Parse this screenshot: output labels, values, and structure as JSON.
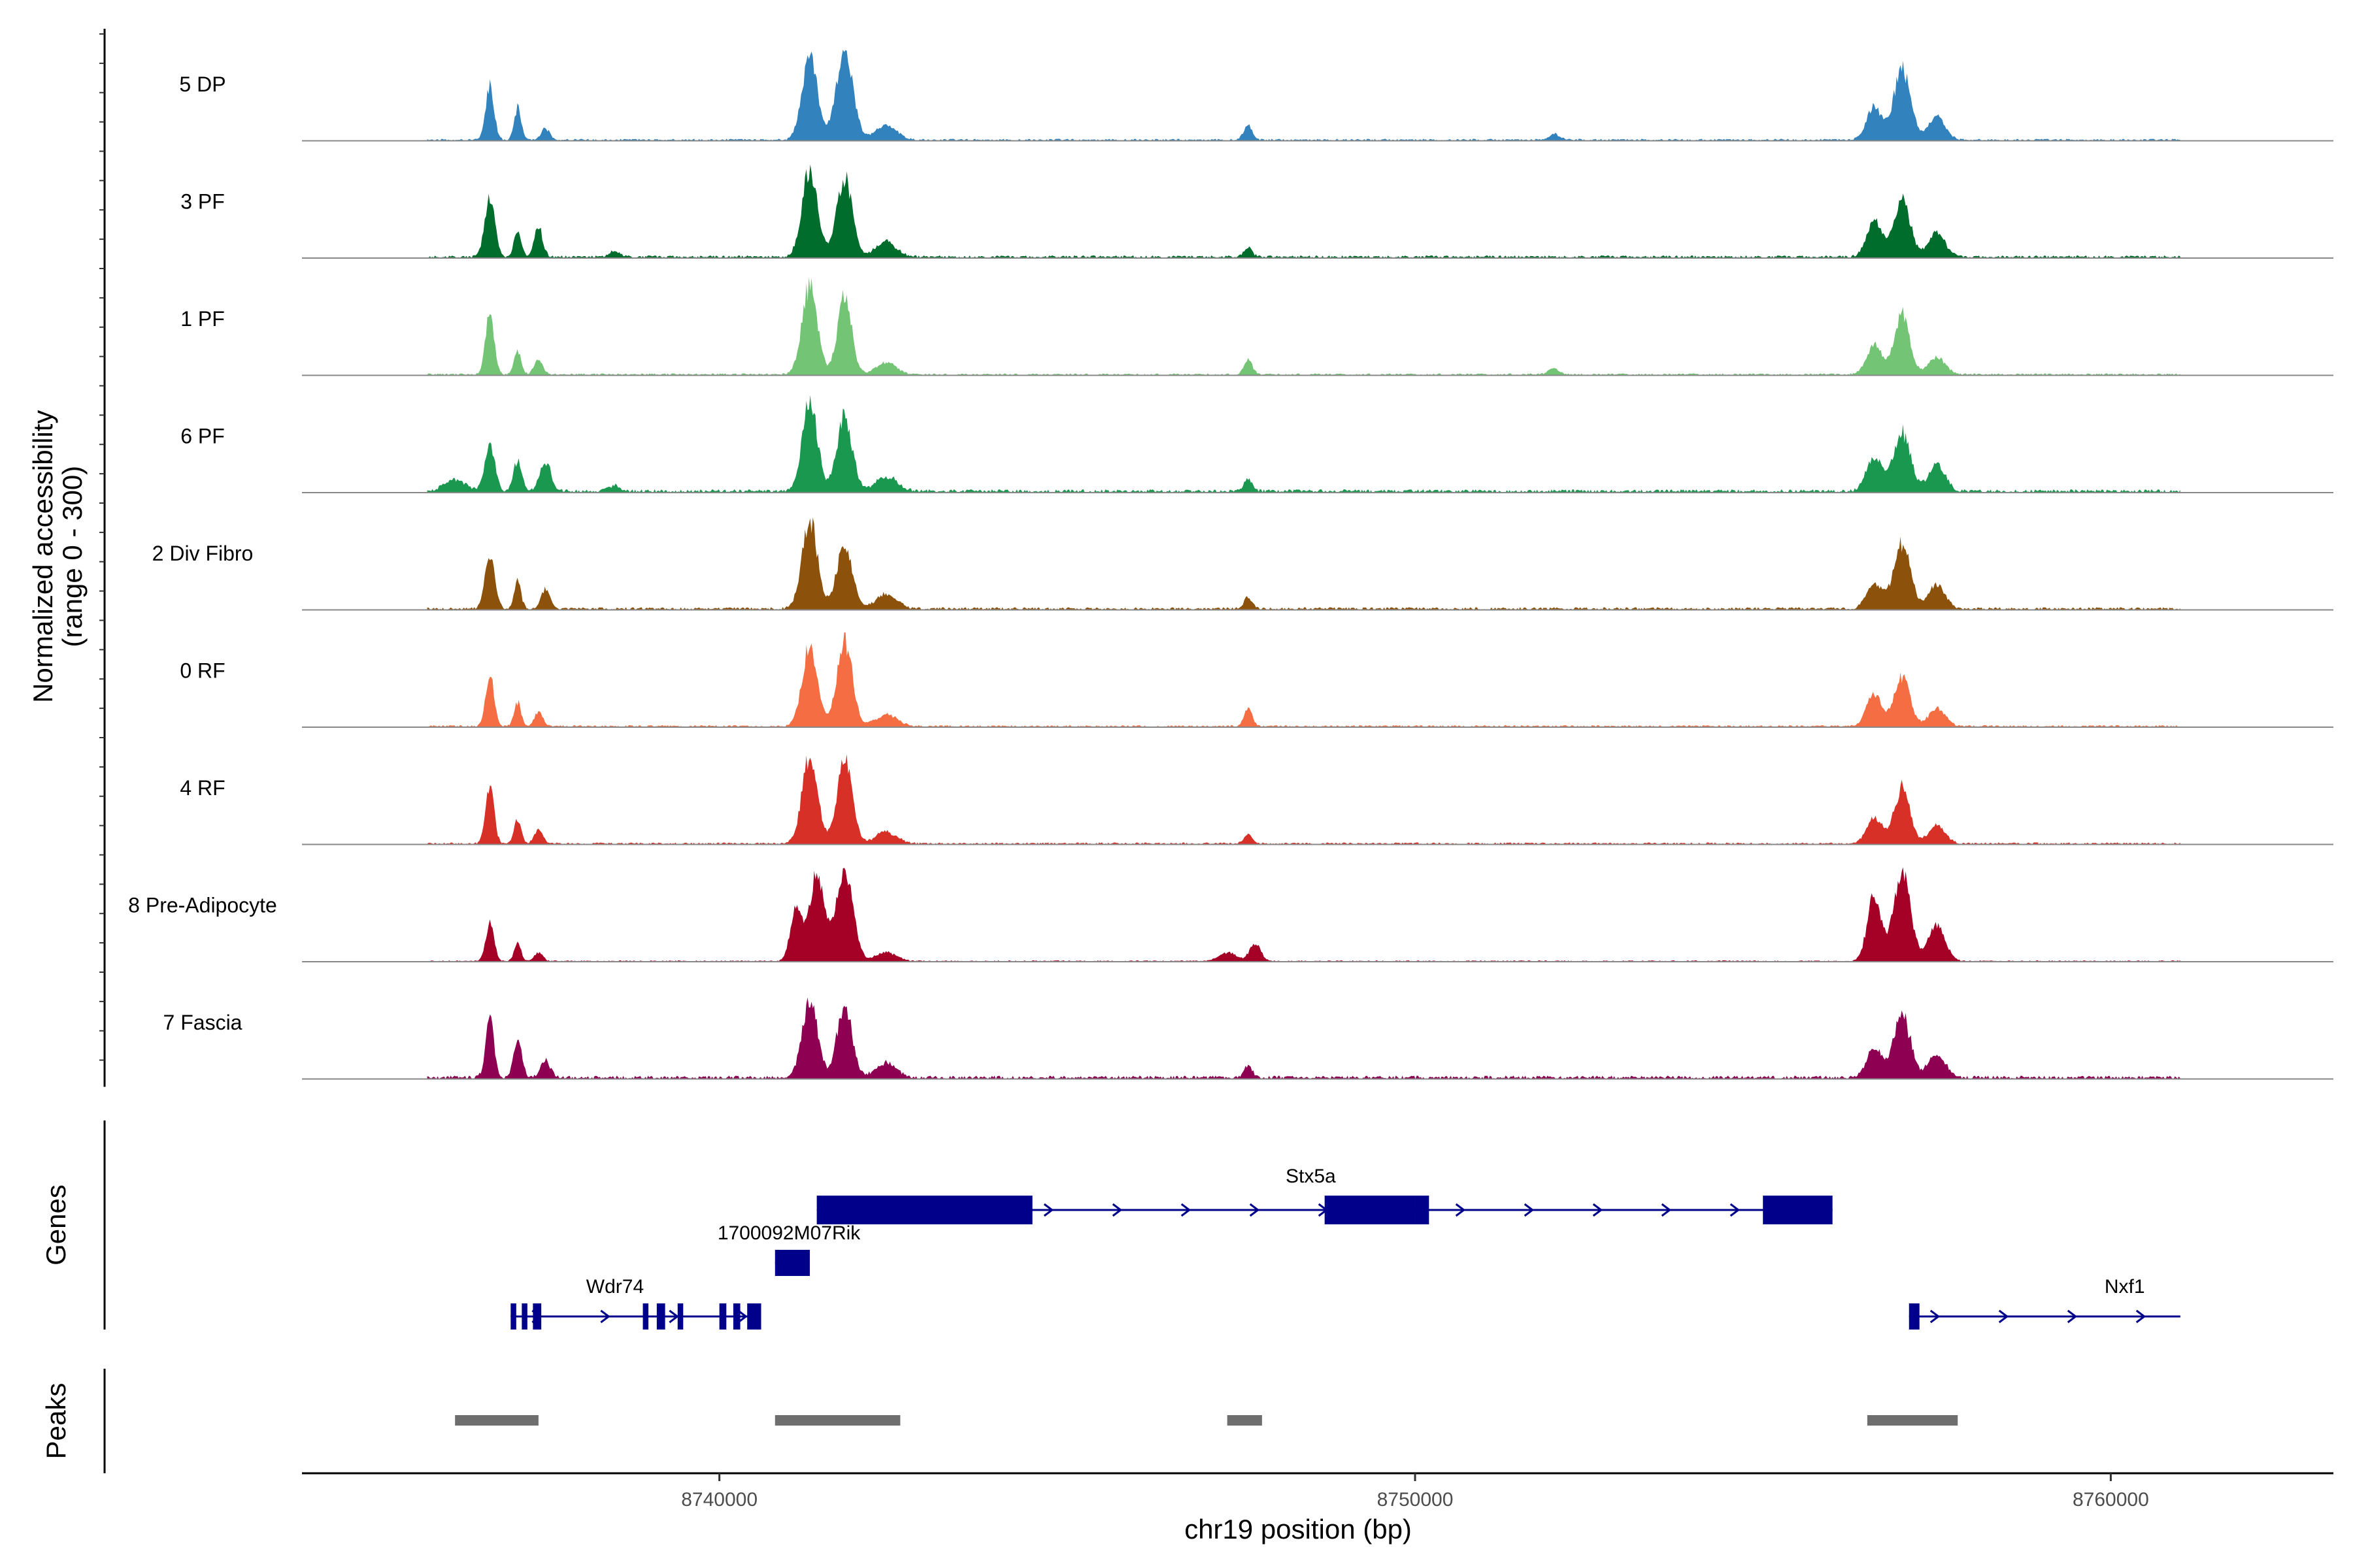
{
  "chart_data": {
    "type": "area",
    "title": "",
    "chromosome": "chr19",
    "xlabel": "chr19 position (bp)",
    "ylabel": "Normalized accessibility",
    "ylabel_range": "(range 0 - 300)",
    "xlim": [
      8734000,
      8763200
    ],
    "ylim": [
      0,
      300
    ],
    "x_ticks": [
      8740000,
      8750000,
      8760000
    ],
    "x_tick_labels": [
      "8740000",
      "8750000",
      "8760000"
    ],
    "coverage_range": [
      8735800,
      8761000
    ],
    "tracks": [
      {
        "name": "5 DP",
        "color": "#3182BD",
        "peaks": [
          [
            8736700,
            190,
            60
          ],
          [
            8737100,
            110,
            50
          ],
          [
            8737500,
            40,
            60
          ],
          [
            8741300,
            280,
            110
          ],
          [
            8741800,
            300,
            120
          ],
          [
            8742400,
            50,
            150
          ],
          [
            8747600,
            50,
            60
          ],
          [
            8752000,
            20,
            80
          ],
          [
            8756600,
            110,
            110
          ],
          [
            8757000,
            240,
            120
          ],
          [
            8757500,
            80,
            120
          ]
        ],
        "base": 6
      },
      {
        "name": "3 PF",
        "color": "#006D2C",
        "peaks": [
          [
            8736700,
            210,
            70
          ],
          [
            8737100,
            90,
            50
          ],
          [
            8737400,
            100,
            60
          ],
          [
            8738500,
            20,
            80
          ],
          [
            8741300,
            300,
            110
          ],
          [
            8741800,
            270,
            110
          ],
          [
            8742400,
            50,
            150
          ],
          [
            8747600,
            30,
            60
          ],
          [
            8756600,
            120,
            110
          ],
          [
            8757000,
            190,
            120
          ],
          [
            8757500,
            80,
            120
          ]
        ],
        "base": 8
      },
      {
        "name": "1 PF",
        "color": "#74C476",
        "peaks": [
          [
            8736700,
            210,
            60
          ],
          [
            8737100,
            80,
            50
          ],
          [
            8737400,
            50,
            60
          ],
          [
            8741300,
            300,
            110
          ],
          [
            8741800,
            270,
            100
          ],
          [
            8742400,
            40,
            150
          ],
          [
            8747600,
            50,
            60
          ],
          [
            8752000,
            20,
            80
          ],
          [
            8756600,
            100,
            110
          ],
          [
            8757000,
            200,
            110
          ],
          [
            8757500,
            60,
            120
          ]
        ],
        "base": 6
      },
      {
        "name": "6 PF",
        "color": "#1A9850",
        "peaks": [
          [
            8736200,
            40,
            150
          ],
          [
            8736700,
            160,
            70
          ],
          [
            8737100,
            100,
            60
          ],
          [
            8737500,
            100,
            80
          ],
          [
            8738500,
            20,
            80
          ],
          [
            8741300,
            300,
            110
          ],
          [
            8741800,
            250,
            110
          ],
          [
            8742400,
            50,
            150
          ],
          [
            8747600,
            40,
            60
          ],
          [
            8756600,
            120,
            110
          ],
          [
            8757000,
            200,
            120
          ],
          [
            8757500,
            90,
            120
          ]
        ],
        "base": 10
      },
      {
        "name": "2 Div Fibro",
        "color": "#8C510A",
        "peaks": [
          [
            8736700,
            180,
            70
          ],
          [
            8737100,
            90,
            50
          ],
          [
            8737500,
            70,
            60
          ],
          [
            8741300,
            300,
            110
          ],
          [
            8741800,
            220,
            110
          ],
          [
            8742400,
            50,
            150
          ],
          [
            8747600,
            40,
            60
          ],
          [
            8756600,
            90,
            110
          ],
          [
            8757000,
            220,
            120
          ],
          [
            8757500,
            80,
            120
          ]
        ],
        "base": 8
      },
      {
        "name": "0 RF",
        "color": "#F46D43",
        "peaks": [
          [
            8736700,
            180,
            60
          ],
          [
            8737100,
            80,
            50
          ],
          [
            8737400,
            50,
            60
          ],
          [
            8741300,
            270,
            110
          ],
          [
            8741800,
            290,
            110
          ],
          [
            8742400,
            40,
            150
          ],
          [
            8747600,
            60,
            60
          ],
          [
            8756600,
            110,
            110
          ],
          [
            8757000,
            170,
            110
          ],
          [
            8757500,
            60,
            120
          ]
        ],
        "base": 6
      },
      {
        "name": "4 RF",
        "color": "#D73027",
        "peaks": [
          [
            8736700,
            200,
            60
          ],
          [
            8737100,
            80,
            50
          ],
          [
            8737400,
            50,
            60
          ],
          [
            8741300,
            300,
            110
          ],
          [
            8741800,
            280,
            110
          ],
          [
            8742400,
            40,
            150
          ],
          [
            8747600,
            30,
            60
          ],
          [
            8756600,
            90,
            110
          ],
          [
            8757000,
            190,
            110
          ],
          [
            8757500,
            60,
            120
          ]
        ],
        "base": 6
      },
      {
        "name": "8 Pre-Adipocyte",
        "color": "#A50026",
        "peaks": [
          [
            8736700,
            130,
            60
          ],
          [
            8737100,
            60,
            50
          ],
          [
            8737400,
            30,
            60
          ],
          [
            8741100,
            180,
            80
          ],
          [
            8741400,
            290,
            110
          ],
          [
            8741800,
            300,
            120
          ],
          [
            8742400,
            30,
            150
          ],
          [
            8747300,
            30,
            120
          ],
          [
            8747700,
            60,
            80
          ],
          [
            8756600,
            220,
            100
          ],
          [
            8757000,
            300,
            120
          ],
          [
            8757500,
            120,
            120
          ]
        ],
        "base": 4
      },
      {
        "name": "7 Fascia",
        "color": "#8E0152",
        "peaks": [
          [
            8736700,
            200,
            60
          ],
          [
            8737100,
            130,
            60
          ],
          [
            8737500,
            60,
            70
          ],
          [
            8741300,
            260,
            110
          ],
          [
            8741800,
            240,
            110
          ],
          [
            8742400,
            50,
            150
          ],
          [
            8747600,
            40,
            60
          ],
          [
            8756600,
            100,
            110
          ],
          [
            8757000,
            210,
            120
          ],
          [
            8757500,
            80,
            120
          ]
        ],
        "base": 10
      }
    ],
    "genes_label": "Genes",
    "genes": [
      {
        "name": "Stx5a",
        "strand": "+",
        "start": 8741400,
        "end": 8756000,
        "exons": [
          [
            8741400,
            8744500
          ],
          [
            8748700,
            8750000
          ],
          [
            8750000,
            8750200
          ],
          [
            8755000,
            8756000
          ]
        ]
      },
      {
        "name": "1700092M07Rik",
        "strand": "+",
        "start": 8740800,
        "end": 8741300,
        "exons": [
          [
            8740800,
            8741300
          ]
        ]
      },
      {
        "name": "Wdr74",
        "strand": "+",
        "start": 8737000,
        "end": 8740600,
        "exons": [
          [
            8737000,
            8737080
          ],
          [
            8737160,
            8737240
          ],
          [
            8737320,
            8737440
          ],
          [
            8738900,
            8738980
          ],
          [
            8739100,
            8739220
          ],
          [
            8739400,
            8739480
          ],
          [
            8740000,
            8740100
          ],
          [
            8740200,
            8740300
          ],
          [
            8740400,
            8740600
          ]
        ]
      },
      {
        "name": "Nxf1",
        "strand": "+",
        "start": 8757100,
        "end": 8761000,
        "exons": [
          [
            8757100,
            8757250
          ]
        ]
      }
    ],
    "peaks_label": "Peaks",
    "peak_regions": [
      [
        8736200,
        8737400
      ],
      [
        8740800,
        8742600
      ],
      [
        8747300,
        8747800
      ],
      [
        8756500,
        8757800
      ]
    ]
  }
}
